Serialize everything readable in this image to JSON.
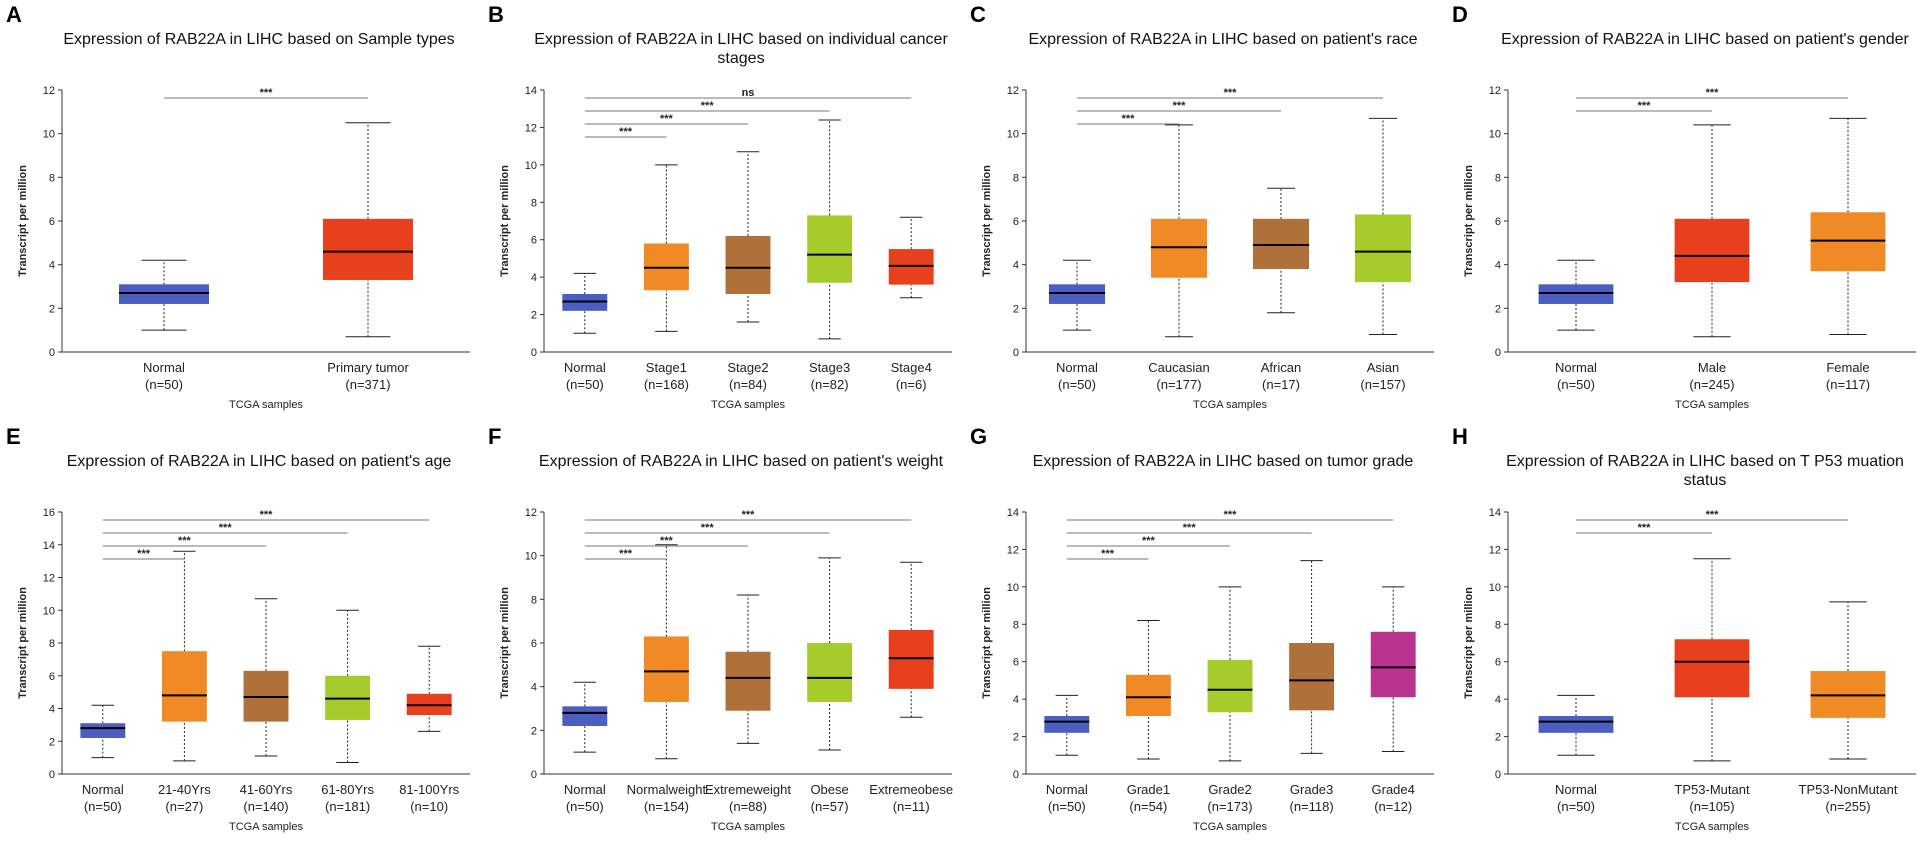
{
  "chart_data": [
    {
      "type": "box",
      "panel": "A",
      "title": [
        "Expression of RAB22A in LIHC based on Sample types"
      ],
      "ylabel": "Transcript per million",
      "xlabel": "TCGA samples",
      "categories": [
        "Normal",
        "Primary tumor"
      ],
      "n_labels": [
        "(n=50)",
        "(n=371)"
      ],
      "colors": [
        "#4a5fc1",
        "#e8401c"
      ],
      "boxes": [
        {
          "min": 1.0,
          "q1": 2.2,
          "median": 2.7,
          "q3": 3.1,
          "max": 4.2
        },
        {
          "min": 0.7,
          "q1": 3.3,
          "median": 4.6,
          "q3": 6.1,
          "max": 10.5
        }
      ],
      "ylim": [
        0,
        12
      ],
      "yticks": [
        0,
        2,
        4,
        6,
        8,
        10,
        12
      ],
      "significance": [
        {
          "from": 0,
          "to": 1,
          "label": "***"
        }
      ]
    },
    {
      "type": "box",
      "panel": "B",
      "title": [
        "Expression of  RAB22A in LIHC based on individual cancer",
        "stages"
      ],
      "ylabel": "Transcript per million",
      "xlabel": "TCGA samples",
      "categories": [
        "Normal",
        "Stage1",
        "Stage2",
        "Stage3",
        "Stage4"
      ],
      "n_labels": [
        "(n=50)",
        "(n=168)",
        "(n=84)",
        "(n=82)",
        "(n=6)"
      ],
      "colors": [
        "#4a5fc1",
        "#f08a24",
        "#b0703a",
        "#a6cc2c",
        "#e8401c"
      ],
      "boxes": [
        {
          "min": 1.0,
          "q1": 2.2,
          "median": 2.7,
          "q3": 3.1,
          "max": 4.2
        },
        {
          "min": 1.1,
          "q1": 3.3,
          "median": 4.5,
          "q3": 5.8,
          "max": 10.0
        },
        {
          "min": 1.6,
          "q1": 3.1,
          "median": 4.5,
          "q3": 6.2,
          "max": 10.7
        },
        {
          "min": 0.7,
          "q1": 3.7,
          "median": 5.2,
          "q3": 7.3,
          "max": 12.4
        },
        {
          "min": 2.9,
          "q1": 3.6,
          "median": 4.6,
          "q3": 5.5,
          "max": 7.2
        }
      ],
      "ylim": [
        0,
        14
      ],
      "yticks": [
        0,
        2,
        4,
        6,
        8,
        10,
        12,
        14
      ],
      "significance": [
        {
          "from": 0,
          "to": 1,
          "label": "***"
        },
        {
          "from": 0,
          "to": 2,
          "label": "***"
        },
        {
          "from": 0,
          "to": 3,
          "label": "***"
        },
        {
          "from": 0,
          "to": 4,
          "label": "ns"
        }
      ]
    },
    {
      "type": "box",
      "panel": "C",
      "title": [
        "Expression of RAB22A in LIHC based on patient's race"
      ],
      "ylabel": "Transcript per million",
      "xlabel": "TCGA samples",
      "categories": [
        "Normal",
        "Caucasian",
        "African",
        "Asian"
      ],
      "n_labels": [
        "(n=50)",
        "(n=177)",
        "(n=17)",
        "(n=157)"
      ],
      "colors": [
        "#4a5fc1",
        "#f08a24",
        "#b0703a",
        "#a6cc2c"
      ],
      "boxes": [
        {
          "min": 1.0,
          "q1": 2.2,
          "median": 2.7,
          "q3": 3.1,
          "max": 4.2
        },
        {
          "min": 0.7,
          "q1": 3.4,
          "median": 4.8,
          "q3": 6.1,
          "max": 10.4
        },
        {
          "min": 1.8,
          "q1": 3.8,
          "median": 4.9,
          "q3": 6.1,
          "max": 7.5
        },
        {
          "min": 0.8,
          "q1": 3.2,
          "median": 4.6,
          "q3": 6.3,
          "max": 10.7
        }
      ],
      "ylim": [
        0,
        12
      ],
      "yticks": [
        0,
        2,
        4,
        6,
        8,
        10,
        12
      ],
      "significance": [
        {
          "from": 0,
          "to": 1,
          "label": "***"
        },
        {
          "from": 0,
          "to": 2,
          "label": "***"
        },
        {
          "from": 0,
          "to": 3,
          "label": "***"
        }
      ]
    },
    {
      "type": "box",
      "panel": "D",
      "title": [
        "Expression of RAB22A in LIHC based on patient's gender"
      ],
      "ylabel": "Transcript per million",
      "xlabel": "TCGA samples",
      "categories": [
        "Normal",
        "Male",
        "Female"
      ],
      "n_labels": [
        "(n=50)",
        "(n=245)",
        "(n=117)"
      ],
      "colors": [
        "#4a5fc1",
        "#e8401c",
        "#f08a24"
      ],
      "boxes": [
        {
          "min": 1.0,
          "q1": 2.2,
          "median": 2.7,
          "q3": 3.1,
          "max": 4.2
        },
        {
          "min": 0.7,
          "q1": 3.2,
          "median": 4.4,
          "q3": 6.1,
          "max": 10.4
        },
        {
          "min": 0.8,
          "q1": 3.7,
          "median": 5.1,
          "q3": 6.4,
          "max": 10.7
        }
      ],
      "ylim": [
        0,
        12
      ],
      "yticks": [
        0,
        2,
        4,
        6,
        8,
        10,
        12
      ],
      "significance": [
        {
          "from": 0,
          "to": 1,
          "label": "***"
        },
        {
          "from": 0,
          "to": 2,
          "label": "***"
        }
      ]
    },
    {
      "type": "box",
      "panel": "E",
      "title": [
        "Expression of RAB22A in LIHC based on patient's age"
      ],
      "ylabel": "Transcript per million",
      "xlabel": "TCGA samples",
      "categories": [
        "Normal",
        "21-40Yrs",
        "41-60Yrs",
        "61-80Yrs",
        "81-100Yrs"
      ],
      "n_labels": [
        "(n=50)",
        "(n=27)",
        "(n=140)",
        "(n=181)",
        "(n=10)"
      ],
      "colors": [
        "#4a5fc1",
        "#f08a24",
        "#b0703a",
        "#a6cc2c",
        "#e8401c"
      ],
      "boxes": [
        {
          "min": 1.0,
          "q1": 2.2,
          "median": 2.8,
          "q3": 3.1,
          "max": 4.2
        },
        {
          "min": 0.8,
          "q1": 3.2,
          "median": 4.8,
          "q3": 7.5,
          "max": 13.6
        },
        {
          "min": 1.1,
          "q1": 3.2,
          "median": 4.7,
          "q3": 6.3,
          "max": 10.7
        },
        {
          "min": 0.7,
          "q1": 3.3,
          "median": 4.6,
          "q3": 6.0,
          "max": 10.0
        },
        {
          "min": 2.6,
          "q1": 3.6,
          "median": 4.2,
          "q3": 4.9,
          "max": 7.8
        }
      ],
      "ylim": [
        0,
        16
      ],
      "yticks": [
        0,
        2,
        4,
        6,
        8,
        10,
        12,
        14,
        16
      ],
      "significance": [
        {
          "from": 0,
          "to": 1,
          "label": "***"
        },
        {
          "from": 0,
          "to": 2,
          "label": "***"
        },
        {
          "from": 0,
          "to": 3,
          "label": "***"
        },
        {
          "from": 0,
          "to": 4,
          "label": "***"
        }
      ]
    },
    {
      "type": "box",
      "panel": "F",
      "title": [
        "Expression of RAB22A in LIHC based on patient's weight"
      ],
      "ylabel": "Transcript per million",
      "xlabel": "TCGA samples",
      "categories": [
        "Normal",
        "Normalweight",
        "Extremeweight",
        "Obese",
        "Extremeobese"
      ],
      "n_labels": [
        "(n=50)",
        "(n=154)",
        "(n=88)",
        "(n=57)",
        "(n=11)"
      ],
      "colors": [
        "#4a5fc1",
        "#f08a24",
        "#b0703a",
        "#a6cc2c",
        "#e8401c"
      ],
      "boxes": [
        {
          "min": 1.0,
          "q1": 2.2,
          "median": 2.8,
          "q3": 3.1,
          "max": 4.2
        },
        {
          "min": 0.7,
          "q1": 3.3,
          "median": 4.7,
          "q3": 6.3,
          "max": 10.5
        },
        {
          "min": 1.4,
          "q1": 2.9,
          "median": 4.4,
          "q3": 5.6,
          "max": 8.2
        },
        {
          "min": 1.1,
          "q1": 3.3,
          "median": 4.4,
          "q3": 6.0,
          "max": 9.9
        },
        {
          "min": 2.6,
          "q1": 3.9,
          "median": 5.3,
          "q3": 6.6,
          "max": 9.7
        }
      ],
      "ylim": [
        0,
        12
      ],
      "yticks": [
        0,
        2,
        4,
        6,
        8,
        10,
        12
      ],
      "significance": [
        {
          "from": 0,
          "to": 1,
          "label": "***"
        },
        {
          "from": 0,
          "to": 2,
          "label": "***"
        },
        {
          "from": 0,
          "to": 3,
          "label": "***"
        },
        {
          "from": 0,
          "to": 4,
          "label": "***"
        }
      ]
    },
    {
      "type": "box",
      "panel": "G",
      "title": [
        "Expression of RAB22A in LIHC based on tumor grade"
      ],
      "ylabel": "Transcript per million",
      "xlabel": "TCGA samples",
      "categories": [
        "Normal",
        "Grade1",
        "Grade2",
        "Grade3",
        "Grade4"
      ],
      "n_labels": [
        "(n=50)",
        "(n=54)",
        "(n=173)",
        "(n=118)",
        "(n=12)"
      ],
      "colors": [
        "#4a5fc1",
        "#f08a24",
        "#a6cc2c",
        "#b0703a",
        "#b9348f"
      ],
      "boxes": [
        {
          "min": 1.0,
          "q1": 2.2,
          "median": 2.8,
          "q3": 3.1,
          "max": 4.2
        },
        {
          "min": 0.8,
          "q1": 3.1,
          "median": 4.1,
          "q3": 5.3,
          "max": 8.2
        },
        {
          "min": 0.7,
          "q1": 3.3,
          "median": 4.5,
          "q3": 6.1,
          "max": 10.0
        },
        {
          "min": 1.1,
          "q1": 3.4,
          "median": 5.0,
          "q3": 7.0,
          "max": 11.4
        },
        {
          "min": 1.2,
          "q1": 4.1,
          "median": 5.7,
          "q3": 7.6,
          "max": 10.0
        }
      ],
      "ylim": [
        0,
        14
      ],
      "yticks": [
        0,
        2,
        4,
        6,
        8,
        10,
        12,
        14
      ],
      "significance": [
        {
          "from": 0,
          "to": 1,
          "label": "***"
        },
        {
          "from": 0,
          "to": 2,
          "label": "***"
        },
        {
          "from": 0,
          "to": 3,
          "label": "***"
        },
        {
          "from": 0,
          "to": 4,
          "label": "***"
        }
      ]
    },
    {
      "type": "box",
      "panel": "H",
      "title": [
        "Expression of RAB22A in LIHC based on T P53 muation",
        "status"
      ],
      "ylabel": "Transcript per million",
      "xlabel": "TCGA samples",
      "categories": [
        "Normal",
        "TP53-Mutant",
        "TP53-NonMutant"
      ],
      "n_labels": [
        "(n=50)",
        "(n=105)",
        "(n=255)"
      ],
      "colors": [
        "#4a5fc1",
        "#e8401c",
        "#f08a24"
      ],
      "boxes": [
        {
          "min": 1.0,
          "q1": 2.2,
          "median": 2.8,
          "q3": 3.1,
          "max": 4.2
        },
        {
          "min": 0.7,
          "q1": 4.1,
          "median": 6.0,
          "q3": 7.2,
          "max": 11.5
        },
        {
          "min": 0.8,
          "q1": 3.0,
          "median": 4.2,
          "q3": 5.5,
          "max": 9.2
        }
      ],
      "ylim": [
        0,
        14
      ],
      "yticks": [
        0,
        2,
        4,
        6,
        8,
        10,
        12,
        14
      ],
      "significance": [
        {
          "from": 0,
          "to": 1,
          "label": "***"
        },
        {
          "from": 0,
          "to": 2,
          "label": "***"
        }
      ]
    }
  ]
}
